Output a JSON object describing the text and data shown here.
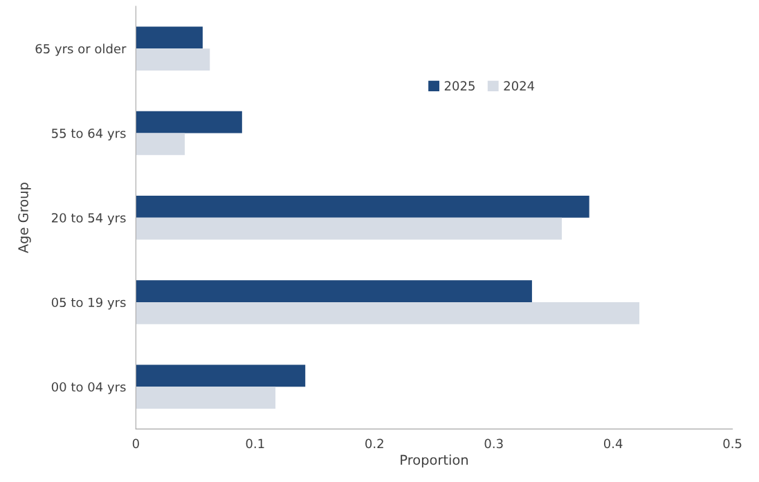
{
  "chart_data": {
    "type": "bar",
    "orientation": "horizontal",
    "xlabel": "Proportion",
    "ylabel": "Age Group",
    "categories": [
      "65 yrs or older",
      "55 to 64 yrs",
      "20 to 54 yrs",
      "05 to 19 yrs",
      "00 to 04 yrs"
    ],
    "series": [
      {
        "name": "2025",
        "color": "#1f497d",
        "values": [
          0.056,
          0.089,
          0.38,
          0.332,
          0.142
        ]
      },
      {
        "name": "2024",
        "color": "#d6dce5",
        "values": [
          0.062,
          0.041,
          0.357,
          0.422,
          0.117
        ]
      }
    ],
    "xlim": [
      0,
      0.5
    ],
    "xticks": [
      0,
      0.1,
      0.2,
      0.3,
      0.4,
      0.5
    ],
    "grid": false,
    "legend": "top"
  }
}
